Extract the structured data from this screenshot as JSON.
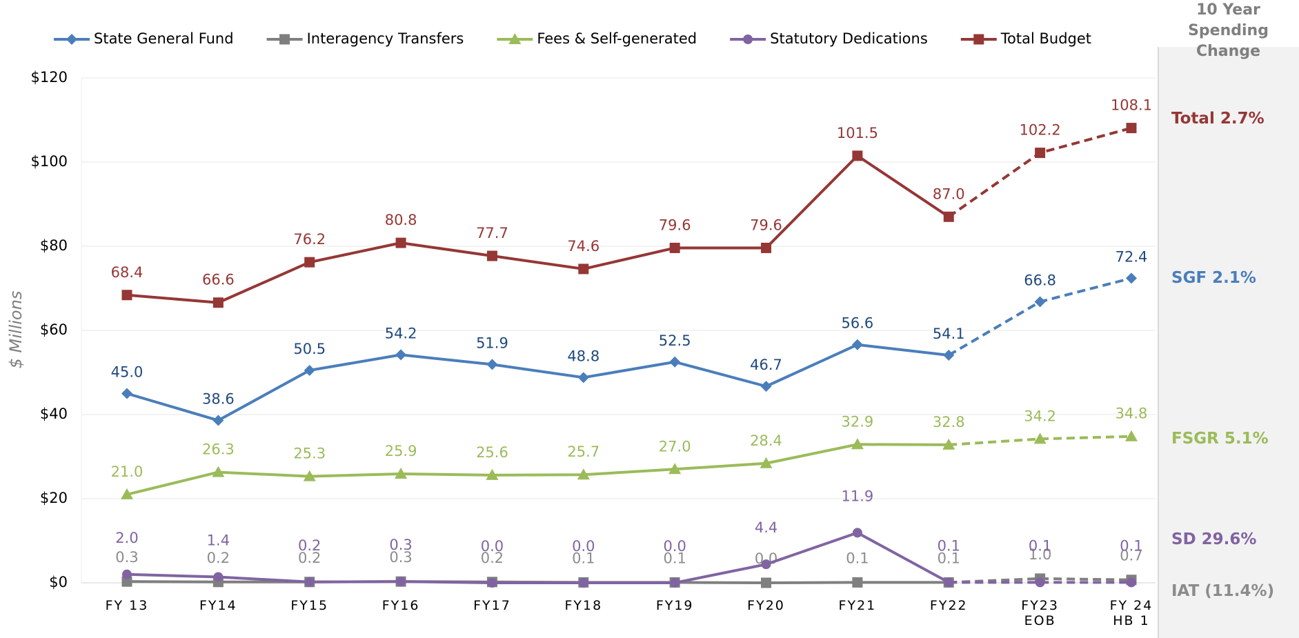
{
  "chart_data": {
    "type": "line",
    "y_axis_label": "$ Millions",
    "categories": [
      "FY 13",
      "FY14",
      "FY15",
      "FY16",
      "FY17",
      "FY18",
      "FY19",
      "FY20",
      "FY21",
      "FY22",
      "FY23\nEOB",
      "FY 24\nHB 1"
    ],
    "dashed_after": "FY22",
    "ylim": [
      0,
      120
    ],
    "yticks": [
      {
        "value": 0,
        "label": "$0"
      },
      {
        "value": 20,
        "label": "$20"
      },
      {
        "value": 40,
        "label": "$40"
      },
      {
        "value": 60,
        "label": "$60"
      },
      {
        "value": 80,
        "label": "$80"
      },
      {
        "value": 100,
        "label": "$100"
      },
      {
        "value": 120,
        "label": "$120"
      }
    ],
    "grid": true,
    "legend": "top",
    "series": [
      {
        "name": "State General Fund",
        "color": "#4a7ebb",
        "label_color": "#1f497d",
        "marker": "diamond",
        "label_offset": 30,
        "values": [
          45.0,
          38.6,
          50.5,
          54.2,
          51.9,
          48.8,
          52.5,
          46.7,
          56.6,
          54.1,
          66.8,
          72.4
        ],
        "value_labels": [
          "45.0",
          "38.6",
          "50.5",
          "54.2",
          "51.9",
          "48.8",
          "52.5",
          "46.7",
          "56.6",
          "54.1",
          "66.8",
          "72.4"
        ]
      },
      {
        "name": "Interagency Transfers",
        "color": "#7f7f7f",
        "label_color": "#8c8c8c",
        "marker": "square",
        "label_offset": 34,
        "values": [
          0.3,
          0.2,
          0.2,
          0.3,
          0.2,
          0.1,
          0.1,
          0.0,
          0.1,
          0.1,
          1.0,
          0.7
        ],
        "value_labels": [
          "0.3",
          "0.2",
          "0.2",
          "0.3",
          "0.2",
          "0.1",
          "0.1",
          "0.0",
          "0.1",
          "0.1",
          "1.0",
          "0.7"
        ]
      },
      {
        "name": "Fees & Self-generated",
        "color": "#9bbb59",
        "label_color": "#9bbb59",
        "marker": "triangle",
        "label_offset": 32,
        "values": [
          21.0,
          26.3,
          25.3,
          25.9,
          25.6,
          25.7,
          27.0,
          28.4,
          32.9,
          32.8,
          34.2,
          34.8
        ],
        "value_labels": [
          "21.0",
          "26.3",
          "25.3",
          "25.9",
          "25.6",
          "25.7",
          "27.0",
          "28.4",
          "32.9",
          "32.8",
          "34.2",
          "34.8"
        ]
      },
      {
        "name": "Statutory Dedications",
        "color": "#8064a2",
        "label_color": "#8064a2",
        "marker": "circle",
        "label_offset": 52,
        "values": [
          2.0,
          1.4,
          0.2,
          0.3,
          0.0,
          0.0,
          0.0,
          4.4,
          11.9,
          0.1,
          0.1,
          0.1
        ],
        "value_labels": [
          "2.0",
          "1.4",
          "0.2",
          "0.3",
          "0.0",
          "0.0",
          "0.0",
          "4.4",
          "11.9",
          "0.1",
          "0.1",
          "0.1"
        ]
      },
      {
        "name": "Total Budget",
        "color": "#953735",
        "label_color": "#953735",
        "marker": "square",
        "label_offset": 32,
        "values": [
          68.4,
          66.6,
          76.2,
          80.8,
          77.7,
          74.6,
          79.6,
          79.6,
          101.5,
          87.0,
          102.2,
          108.1
        ],
        "value_labels": [
          "68.4",
          "66.6",
          "76.2",
          "80.8",
          "77.7",
          "74.6",
          "79.6",
          "79.6",
          "101.5",
          "87.0",
          "102.2",
          "108.1"
        ]
      }
    ]
  },
  "side_panel": {
    "title": "10 Year\nSpending Change",
    "items": [
      {
        "label": "Total 2.7%",
        "color": "#953735"
      },
      {
        "label": "SGF 2.1%",
        "color": "#4a7ebb"
      },
      {
        "label": "FSGR 5.1%",
        "color": "#9bbb59"
      },
      {
        "label": "SD 29.6%",
        "color": "#8064a2"
      },
      {
        "label": "IAT (11.4%)",
        "color": "#8c8c8c"
      }
    ]
  }
}
